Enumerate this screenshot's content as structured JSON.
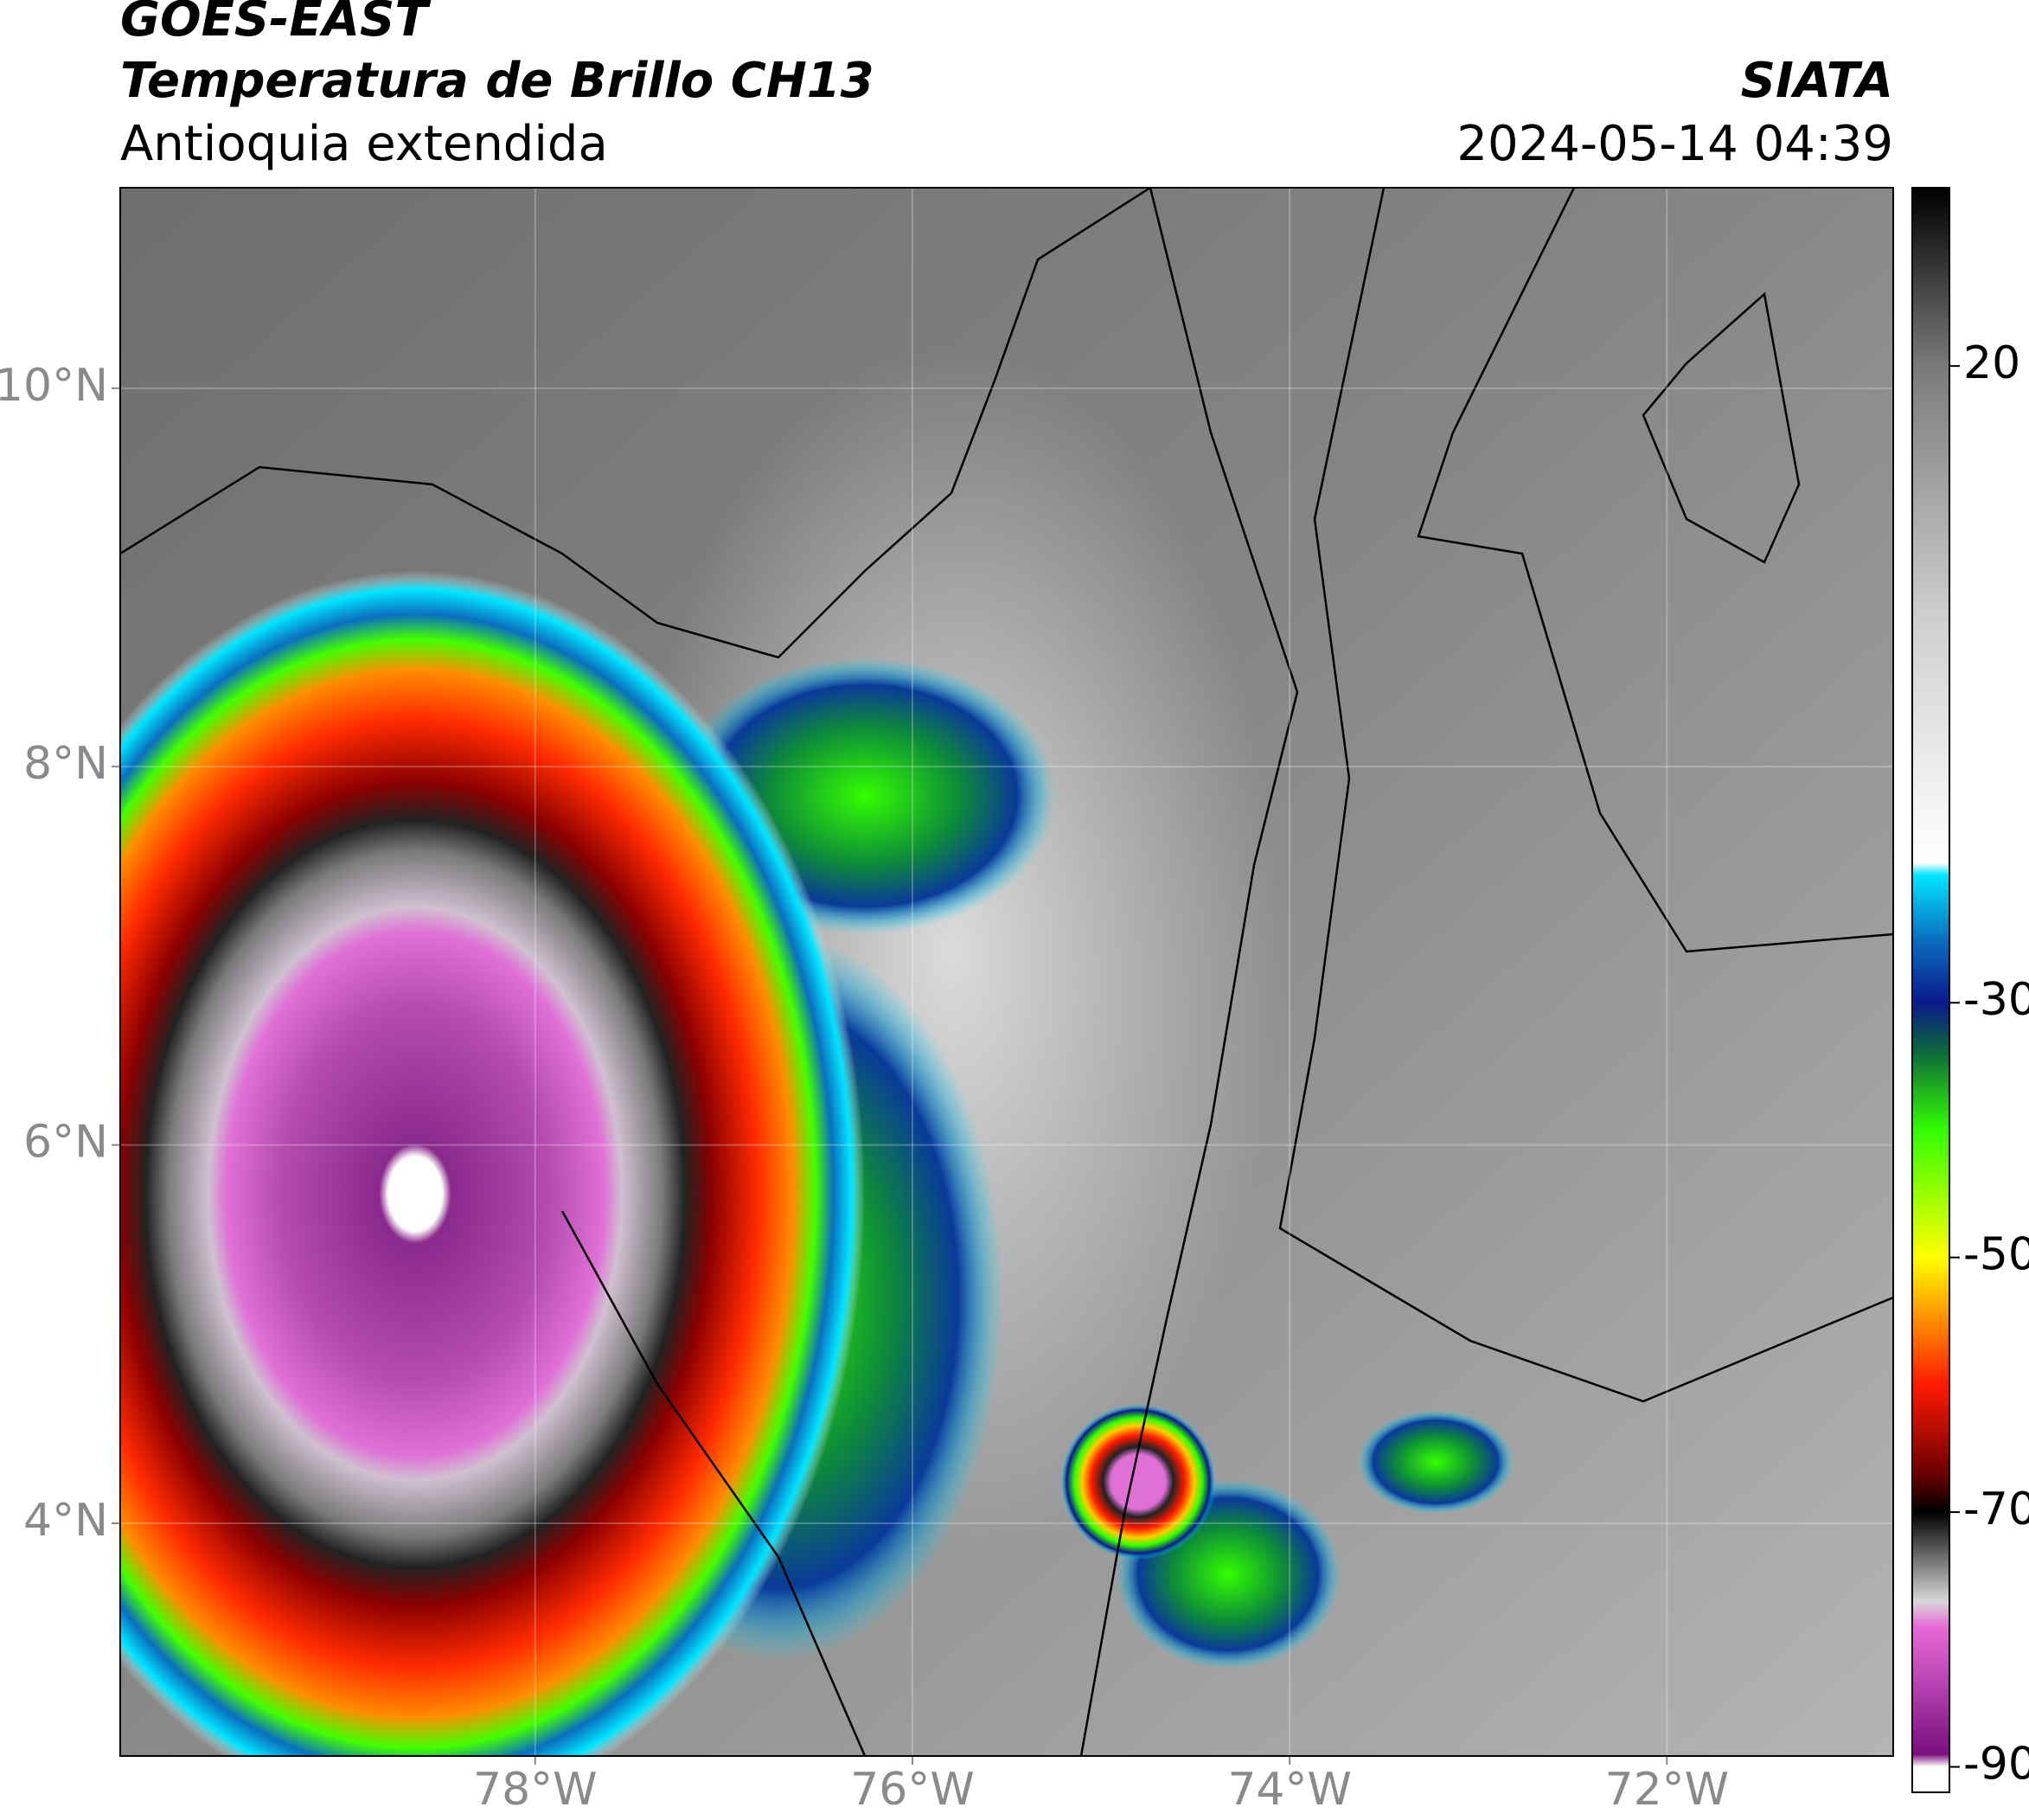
{
  "header": {
    "line1": "GOES-EAST",
    "line2": "Temperatura de Brillo CH13",
    "region": "Antioquia extendida",
    "source": "SIATA",
    "timestamp": "2024-05-14 04:39"
  },
  "map": {
    "xlim": [
      -80.2,
      -70.8
    ],
    "ylim": [
      2.77,
      11.06
    ],
    "xticks": [
      {
        "value": -78,
        "label": "78°W"
      },
      {
        "value": -76,
        "label": "76°W"
      },
      {
        "value": -74,
        "label": "74°W"
      },
      {
        "value": -72,
        "label": "72°W"
      }
    ],
    "yticks": [
      {
        "value": 4,
        "label": "4°N"
      },
      {
        "value": 6,
        "label": "6°N"
      },
      {
        "value": 8,
        "label": "8°N"
      },
      {
        "value": 10,
        "label": "10°N"
      }
    ]
  },
  "colorbar": {
    "lim": [
      -92,
      34
    ],
    "ticks": [
      20,
      -30,
      -50,
      -70,
      -90
    ],
    "stops": [
      {
        "value": 34,
        "color": "#000000"
      },
      {
        "value": 20,
        "color": "#7a7a7a"
      },
      {
        "value": 0,
        "color": "#cfcfcf"
      },
      {
        "value": -19,
        "color": "#ffffff"
      },
      {
        "value": -20,
        "color": "#00e5ff"
      },
      {
        "value": -25,
        "color": "#0a6fc0"
      },
      {
        "value": -30,
        "color": "#0a1a8a"
      },
      {
        "value": -34,
        "color": "#0d6b3a"
      },
      {
        "value": -40,
        "color": "#33ff00"
      },
      {
        "value": -50,
        "color": "#ffff00"
      },
      {
        "value": -55,
        "color": "#ff8c00"
      },
      {
        "value": -60,
        "color": "#ff1a00"
      },
      {
        "value": -67,
        "color": "#6b0000"
      },
      {
        "value": -70,
        "color": "#000000"
      },
      {
        "value": -77,
        "color": "#d8d8d8"
      },
      {
        "value": -79,
        "color": "#e86ad8"
      },
      {
        "value": -89,
        "color": "#7a1080"
      },
      {
        "value": -90,
        "color": "#ffffff"
      }
    ]
  }
}
